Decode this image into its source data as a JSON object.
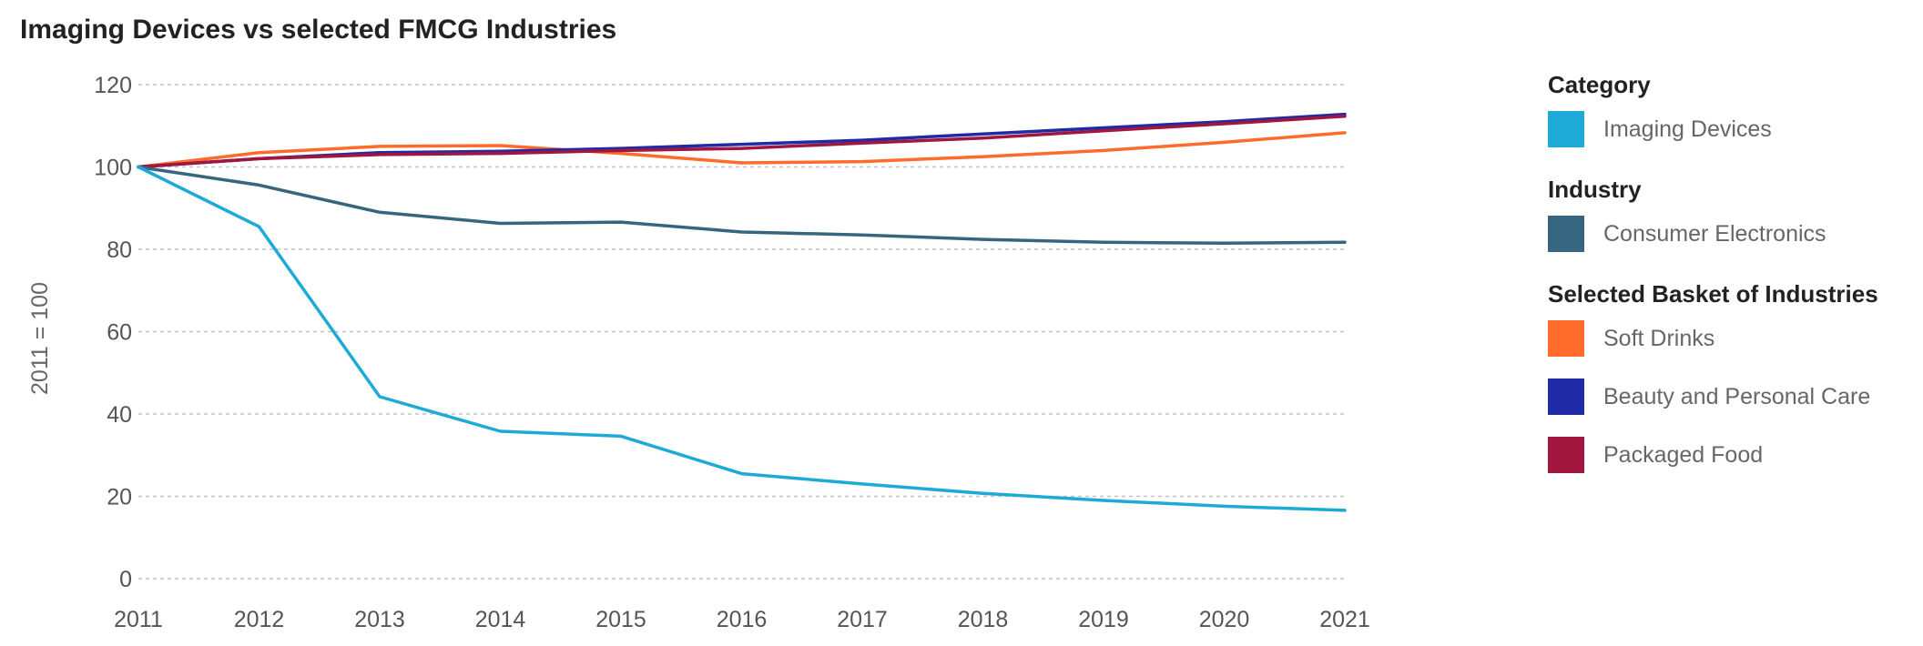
{
  "chart_data": {
    "type": "line",
    "title": "Imaging Devices vs selected FMCG Industries",
    "ylabel": "2011 = 100",
    "xlabel": "",
    "x": [
      "2011",
      "2012",
      "2013",
      "2014",
      "2015",
      "2016",
      "2017",
      "2018",
      "2019",
      "2020",
      "2021"
    ],
    "highlighted_x": "2016",
    "highlight_color": "#1eaad6",
    "ylim": [
      0,
      120
    ],
    "yticks": [
      0,
      20,
      40,
      60,
      80,
      100,
      120
    ],
    "grid": true,
    "legend_position": "right",
    "series": [
      {
        "name": "Soft Drinks",
        "color": "#ff6b2b",
        "values": [
          100,
          103.5,
          105,
          105.2,
          103.3,
          101,
          101.3,
          102.5,
          104,
          106,
          108.3
        ]
      },
      {
        "name": "Beauty and Personal Care",
        "color": "#1f2aa6",
        "values": [
          100,
          102,
          103.5,
          103.8,
          104.5,
          105.5,
          106.5,
          108,
          109.5,
          111,
          112.8
        ]
      },
      {
        "name": "Packaged Food",
        "color": "#a0163f",
        "values": [
          100,
          102,
          103,
          103.3,
          104,
          104.5,
          105.8,
          107,
          108.8,
          110.5,
          112.3
        ]
      },
      {
        "name": "Consumer Electronics",
        "color": "#36667f",
        "values": [
          100,
          95.6,
          89,
          86.3,
          86.6,
          84.2,
          83.5,
          82.4,
          81.7,
          81.5,
          81.7
        ]
      },
      {
        "name": "Imaging Devices",
        "color": "#1eaad6",
        "values": [
          100,
          85.5,
          44.2,
          35.8,
          34.6,
          25.5,
          23,
          20.7,
          19,
          17.6,
          16.6
        ]
      }
    ],
    "legend": [
      {
        "heading": "Category",
        "items": [
          {
            "label": "Imaging Devices",
            "color": "#1eaad6"
          }
        ]
      },
      {
        "heading": "Industry",
        "items": [
          {
            "label": "Consumer Electronics",
            "color": "#36667f"
          }
        ]
      },
      {
        "heading": "Selected Basket of Industries",
        "items": [
          {
            "label": "Soft Drinks",
            "color": "#ff6b2b"
          },
          {
            "label": "Beauty and Personal Care",
            "color": "#1f2aa6"
          },
          {
            "label": "Packaged Food",
            "color": "#a0163f"
          }
        ]
      }
    ]
  }
}
